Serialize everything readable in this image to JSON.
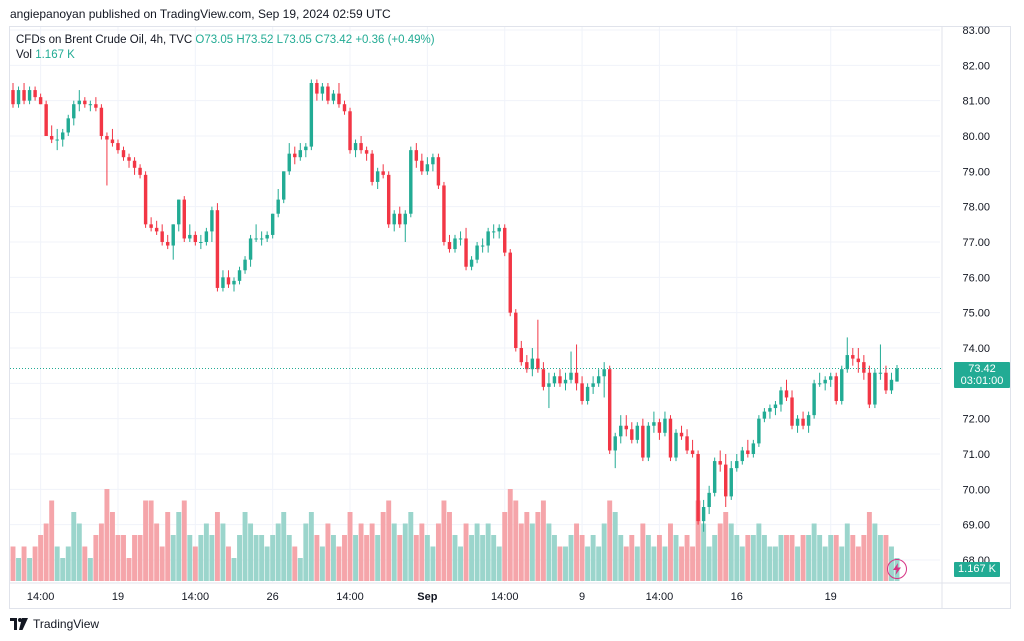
{
  "header": {
    "published_text": "angiepanoyan published on TradingView.com, Sep 19, 2024 02:59 UTC"
  },
  "legend": {
    "symbol_line": "CFDs on Brent Crude Oil, 4h, TVC",
    "open": "O73.05",
    "high": "H73.52",
    "low": "L73.05",
    "close": "C73.42",
    "change": "+0.36 (+0.49%)",
    "vol_label": "Vol",
    "vol_value": "1.167 K"
  },
  "price_tag": {
    "price": "73.42",
    "countdown": "03:01:00"
  },
  "volume_tag": "1.167 K",
  "footer": {
    "brand": "TradingView"
  },
  "colors": {
    "up": "#22ab94",
    "down": "#f23645",
    "up_vol": "#9bd5cc",
    "down_vol": "#f5a5aa",
    "grid": "#f0f3fa"
  },
  "chart_data": {
    "type": "candlestick",
    "title": "CFDs on Brent Crude Oil, 4h, TVC",
    "ylim": [
      67.8,
      83.3
    ],
    "y_ticks": [
      "83.00",
      "82.00",
      "81.00",
      "80.00",
      "79.00",
      "78.00",
      "77.00",
      "76.00",
      "75.00",
      "74.00",
      "73.00",
      "72.00",
      "71.00",
      "70.00",
      "69.00",
      "68.00"
    ],
    "x_ticks": [
      {
        "label": "14:00",
        "index": 5,
        "bold": false
      },
      {
        "label": "19",
        "index": 19,
        "bold": false
      },
      {
        "label": "14:00",
        "index": 33,
        "bold": false
      },
      {
        "label": "26",
        "index": 47,
        "bold": false
      },
      {
        "label": "14:00",
        "index": 61,
        "bold": false
      },
      {
        "label": "Sep",
        "index": 75,
        "bold": true
      },
      {
        "label": "14:00",
        "index": 89,
        "bold": false
      },
      {
        "label": "9",
        "index": 103,
        "bold": false
      },
      {
        "label": "14:00",
        "index": 117,
        "bold": false
      },
      {
        "label": "16",
        "index": 131,
        "bold": false
      },
      {
        "label": "19",
        "index": 148,
        "bold": false
      }
    ],
    "last_price": 73.42,
    "candles": [
      {
        "o": 81.3,
        "h": 81.5,
        "l": 80.8,
        "c": 80.9,
        "v": 3
      },
      {
        "o": 80.9,
        "h": 81.4,
        "l": 80.8,
        "c": 81.3,
        "v": 2
      },
      {
        "o": 81.3,
        "h": 81.5,
        "l": 80.9,
        "c": 81.0,
        "v": 3
      },
      {
        "o": 81.0,
        "h": 81.4,
        "l": 80.9,
        "c": 81.3,
        "v": 2
      },
      {
        "o": 81.3,
        "h": 81.4,
        "l": 81.0,
        "c": 81.1,
        "v": 3
      },
      {
        "o": 81.1,
        "h": 81.2,
        "l": 80.9,
        "c": 80.9,
        "v": 4
      },
      {
        "o": 80.9,
        "h": 81.0,
        "l": 80.0,
        "c": 80.0,
        "v": 5
      },
      {
        "o": 80.0,
        "h": 80.3,
        "l": 79.8,
        "c": 79.9,
        "v": 7
      },
      {
        "o": 79.9,
        "h": 80.2,
        "l": 79.6,
        "c": 79.9,
        "v": 3
      },
      {
        "o": 79.9,
        "h": 80.2,
        "l": 79.7,
        "c": 80.1,
        "v": 2
      },
      {
        "o": 80.1,
        "h": 80.6,
        "l": 80.0,
        "c": 80.5,
        "v": 3
      },
      {
        "o": 80.5,
        "h": 81.0,
        "l": 80.3,
        "c": 80.9,
        "v": 6
      },
      {
        "o": 80.9,
        "h": 81.3,
        "l": 80.7,
        "c": 81.0,
        "v": 5
      },
      {
        "o": 81.0,
        "h": 81.1,
        "l": 80.8,
        "c": 80.9,
        "v": 3
      },
      {
        "o": 80.9,
        "h": 81.0,
        "l": 80.7,
        "c": 80.9,
        "v": 2
      },
      {
        "o": 80.9,
        "h": 81.1,
        "l": 80.7,
        "c": 80.8,
        "v": 4
      },
      {
        "o": 80.8,
        "h": 80.9,
        "l": 79.9,
        "c": 80.0,
        "v": 5
      },
      {
        "o": 80.0,
        "h": 80.1,
        "l": 78.6,
        "c": 79.9,
        "v": 8
      },
      {
        "o": 79.9,
        "h": 80.2,
        "l": 79.7,
        "c": 79.8,
        "v": 6
      },
      {
        "o": 79.8,
        "h": 79.9,
        "l": 79.5,
        "c": 79.6,
        "v": 4
      },
      {
        "o": 79.6,
        "h": 79.7,
        "l": 79.3,
        "c": 79.4,
        "v": 4
      },
      {
        "o": 79.4,
        "h": 79.5,
        "l": 79.1,
        "c": 79.3,
        "v": 2
      },
      {
        "o": 79.3,
        "h": 79.4,
        "l": 78.9,
        "c": 79.1,
        "v": 4
      },
      {
        "o": 79.1,
        "h": 79.2,
        "l": 78.8,
        "c": 78.9,
        "v": 4
      },
      {
        "o": 78.9,
        "h": 79.0,
        "l": 77.4,
        "c": 77.5,
        "v": 7
      },
      {
        "o": 77.5,
        "h": 77.7,
        "l": 77.3,
        "c": 77.4,
        "v": 7
      },
      {
        "o": 77.4,
        "h": 77.6,
        "l": 77.2,
        "c": 77.3,
        "v": 5
      },
      {
        "o": 77.3,
        "h": 77.5,
        "l": 76.9,
        "c": 77.0,
        "v": 3
      },
      {
        "o": 77.0,
        "h": 77.2,
        "l": 76.8,
        "c": 76.9,
        "v": 6
      },
      {
        "o": 76.9,
        "h": 77.5,
        "l": 76.5,
        "c": 77.5,
        "v": 4
      },
      {
        "o": 77.5,
        "h": 78.2,
        "l": 77.3,
        "c": 78.2,
        "v": 6
      },
      {
        "o": 78.2,
        "h": 78.3,
        "l": 77.0,
        "c": 77.1,
        "v": 7
      },
      {
        "o": 77.1,
        "h": 77.5,
        "l": 77.0,
        "c": 77.2,
        "v": 4
      },
      {
        "o": 77.2,
        "h": 77.3,
        "l": 76.9,
        "c": 77.0,
        "v": 3
      },
      {
        "o": 77.0,
        "h": 77.2,
        "l": 76.8,
        "c": 77.0,
        "v": 4
      },
      {
        "o": 77.0,
        "h": 77.4,
        "l": 76.9,
        "c": 77.3,
        "v": 5
      },
      {
        "o": 77.3,
        "h": 78.0,
        "l": 77.0,
        "c": 77.9,
        "v": 4
      },
      {
        "o": 77.9,
        "h": 78.1,
        "l": 75.6,
        "c": 75.7,
        "v": 6
      },
      {
        "o": 75.7,
        "h": 76.2,
        "l": 75.6,
        "c": 76.0,
        "v": 5
      },
      {
        "o": 76.0,
        "h": 76.2,
        "l": 75.7,
        "c": 75.8,
        "v": 3
      },
      {
        "o": 75.8,
        "h": 76.0,
        "l": 75.6,
        "c": 75.9,
        "v": 2
      },
      {
        "o": 75.9,
        "h": 76.3,
        "l": 75.8,
        "c": 76.2,
        "v": 4
      },
      {
        "o": 76.2,
        "h": 76.6,
        "l": 76.1,
        "c": 76.5,
        "v": 6
      },
      {
        "o": 76.5,
        "h": 77.2,
        "l": 76.3,
        "c": 77.1,
        "v": 5
      },
      {
        "o": 77.1,
        "h": 77.5,
        "l": 77.0,
        "c": 77.1,
        "v": 4
      },
      {
        "o": 77.1,
        "h": 77.3,
        "l": 76.9,
        "c": 77.1,
        "v": 4
      },
      {
        "o": 77.1,
        "h": 77.3,
        "l": 77.0,
        "c": 77.2,
        "v": 3
      },
      {
        "o": 77.2,
        "h": 77.8,
        "l": 77.1,
        "c": 77.8,
        "v": 4
      },
      {
        "o": 77.8,
        "h": 78.5,
        "l": 77.7,
        "c": 78.2,
        "v": 5
      },
      {
        "o": 78.2,
        "h": 79.0,
        "l": 78.1,
        "c": 79.0,
        "v": 6
      },
      {
        "o": 79.0,
        "h": 79.8,
        "l": 78.9,
        "c": 79.5,
        "v": 4
      },
      {
        "o": 79.5,
        "h": 79.7,
        "l": 79.2,
        "c": 79.4,
        "v": 3
      },
      {
        "o": 79.4,
        "h": 79.8,
        "l": 79.3,
        "c": 79.6,
        "v": 2
      },
      {
        "o": 79.6,
        "h": 79.8,
        "l": 79.4,
        "c": 79.7,
        "v": 5
      },
      {
        "o": 79.7,
        "h": 81.6,
        "l": 79.6,
        "c": 81.5,
        "v": 6
      },
      {
        "o": 81.5,
        "h": 81.6,
        "l": 81.0,
        "c": 81.2,
        "v": 4
      },
      {
        "o": 81.2,
        "h": 81.5,
        "l": 81.0,
        "c": 81.4,
        "v": 3
      },
      {
        "o": 81.4,
        "h": 81.5,
        "l": 80.9,
        "c": 81.0,
        "v": 5
      },
      {
        "o": 81.0,
        "h": 81.3,
        "l": 80.9,
        "c": 81.2,
        "v": 4
      },
      {
        "o": 81.2,
        "h": 81.5,
        "l": 80.8,
        "c": 80.9,
        "v": 3
      },
      {
        "o": 80.9,
        "h": 81.0,
        "l": 80.6,
        "c": 80.7,
        "v": 4
      },
      {
        "o": 80.7,
        "h": 80.8,
        "l": 79.5,
        "c": 79.6,
        "v": 6
      },
      {
        "o": 79.6,
        "h": 79.9,
        "l": 79.4,
        "c": 79.8,
        "v": 4
      },
      {
        "o": 79.8,
        "h": 80.0,
        "l": 79.5,
        "c": 79.6,
        "v": 5
      },
      {
        "o": 79.6,
        "h": 79.7,
        "l": 79.3,
        "c": 79.5,
        "v": 4
      },
      {
        "o": 79.5,
        "h": 79.6,
        "l": 78.6,
        "c": 78.7,
        "v": 5
      },
      {
        "o": 78.7,
        "h": 79.1,
        "l": 78.5,
        "c": 79.0,
        "v": 4
      },
      {
        "o": 79.0,
        "h": 79.2,
        "l": 78.8,
        "c": 78.9,
        "v": 6
      },
      {
        "o": 78.9,
        "h": 79.0,
        "l": 77.4,
        "c": 77.5,
        "v": 7
      },
      {
        "o": 77.5,
        "h": 77.9,
        "l": 77.3,
        "c": 77.8,
        "v": 5
      },
      {
        "o": 77.8,
        "h": 78.0,
        "l": 77.4,
        "c": 77.5,
        "v": 4
      },
      {
        "o": 77.5,
        "h": 77.9,
        "l": 77.0,
        "c": 77.8,
        "v": 5
      },
      {
        "o": 77.8,
        "h": 79.7,
        "l": 77.7,
        "c": 79.6,
        "v": 6
      },
      {
        "o": 79.6,
        "h": 79.8,
        "l": 79.1,
        "c": 79.3,
        "v": 4
      },
      {
        "o": 79.3,
        "h": 79.5,
        "l": 78.9,
        "c": 79.0,
        "v": 5
      },
      {
        "o": 79.0,
        "h": 79.4,
        "l": 78.9,
        "c": 79.2,
        "v": 4
      },
      {
        "o": 79.2,
        "h": 79.5,
        "l": 79.0,
        "c": 79.4,
        "v": 3
      },
      {
        "o": 79.4,
        "h": 79.5,
        "l": 78.5,
        "c": 78.6,
        "v": 5
      },
      {
        "o": 78.6,
        "h": 78.7,
        "l": 76.9,
        "c": 77.0,
        "v": 7
      },
      {
        "o": 77.0,
        "h": 77.2,
        "l": 76.7,
        "c": 76.8,
        "v": 6
      },
      {
        "o": 76.8,
        "h": 77.2,
        "l": 76.7,
        "c": 77.1,
        "v": 4
      },
      {
        "o": 77.1,
        "h": 77.3,
        "l": 76.9,
        "c": 77.1,
        "v": 3
      },
      {
        "o": 77.1,
        "h": 77.4,
        "l": 76.2,
        "c": 76.3,
        "v": 5
      },
      {
        "o": 76.3,
        "h": 76.6,
        "l": 76.2,
        "c": 76.5,
        "v": 4
      },
      {
        "o": 76.5,
        "h": 77.0,
        "l": 76.4,
        "c": 76.9,
        "v": 5
      },
      {
        "o": 76.9,
        "h": 77.1,
        "l": 76.7,
        "c": 76.9,
        "v": 4
      },
      {
        "o": 76.9,
        "h": 77.4,
        "l": 76.7,
        "c": 77.3,
        "v": 5
      },
      {
        "o": 77.3,
        "h": 77.5,
        "l": 77.1,
        "c": 77.3,
        "v": 4
      },
      {
        "o": 77.3,
        "h": 77.5,
        "l": 77.1,
        "c": 77.4,
        "v": 3
      },
      {
        "o": 77.4,
        "h": 77.5,
        "l": 76.6,
        "c": 76.7,
        "v": 6
      },
      {
        "o": 76.7,
        "h": 76.8,
        "l": 74.9,
        "c": 75.0,
        "v": 8
      },
      {
        "o": 75.0,
        "h": 75.1,
        "l": 73.9,
        "c": 74.0,
        "v": 7
      },
      {
        "o": 74.0,
        "h": 74.2,
        "l": 73.5,
        "c": 73.6,
        "v": 5
      },
      {
        "o": 73.6,
        "h": 73.8,
        "l": 73.3,
        "c": 73.4,
        "v": 6
      },
      {
        "o": 73.4,
        "h": 74.0,
        "l": 73.2,
        "c": 73.7,
        "v": 5
      },
      {
        "o": 73.7,
        "h": 74.8,
        "l": 73.3,
        "c": 73.4,
        "v": 6
      },
      {
        "o": 73.4,
        "h": 73.6,
        "l": 72.8,
        "c": 72.9,
        "v": 7
      },
      {
        "o": 72.9,
        "h": 73.3,
        "l": 72.3,
        "c": 73.0,
        "v": 5
      },
      {
        "o": 73.0,
        "h": 73.3,
        "l": 72.9,
        "c": 73.2,
        "v": 4
      },
      {
        "o": 73.2,
        "h": 73.4,
        "l": 72.9,
        "c": 73.0,
        "v": 3
      },
      {
        "o": 73.0,
        "h": 73.3,
        "l": 72.8,
        "c": 73.1,
        "v": 3
      },
      {
        "o": 73.1,
        "h": 73.9,
        "l": 73.0,
        "c": 73.3,
        "v": 4
      },
      {
        "o": 73.3,
        "h": 74.1,
        "l": 72.8,
        "c": 73.0,
        "v": 5
      },
      {
        "o": 73.0,
        "h": 73.2,
        "l": 72.4,
        "c": 72.5,
        "v": 4
      },
      {
        "o": 72.5,
        "h": 73.0,
        "l": 72.4,
        "c": 72.9,
        "v": 3
      },
      {
        "o": 72.9,
        "h": 73.2,
        "l": 72.7,
        "c": 73.0,
        "v": 4
      },
      {
        "o": 73.0,
        "h": 73.4,
        "l": 72.9,
        "c": 73.2,
        "v": 3
      },
      {
        "o": 73.2,
        "h": 73.6,
        "l": 72.6,
        "c": 73.4,
        "v": 5
      },
      {
        "o": 73.4,
        "h": 73.5,
        "l": 71.0,
        "c": 71.1,
        "v": 7
      },
      {
        "o": 71.1,
        "h": 71.6,
        "l": 70.6,
        "c": 71.5,
        "v": 6
      },
      {
        "o": 71.5,
        "h": 72.1,
        "l": 71.3,
        "c": 71.8,
        "v": 4
      },
      {
        "o": 71.8,
        "h": 72.1,
        "l": 71.5,
        "c": 71.7,
        "v": 3
      },
      {
        "o": 71.7,
        "h": 71.9,
        "l": 71.3,
        "c": 71.4,
        "v": 4
      },
      {
        "o": 71.4,
        "h": 71.9,
        "l": 71.3,
        "c": 71.8,
        "v": 3
      },
      {
        "o": 71.8,
        "h": 72.0,
        "l": 70.8,
        "c": 70.9,
        "v": 5
      },
      {
        "o": 70.9,
        "h": 71.9,
        "l": 70.8,
        "c": 71.8,
        "v": 4
      },
      {
        "o": 71.8,
        "h": 72.2,
        "l": 71.6,
        "c": 71.9,
        "v": 3
      },
      {
        "o": 71.9,
        "h": 72.0,
        "l": 71.4,
        "c": 71.6,
        "v": 4
      },
      {
        "o": 71.6,
        "h": 72.2,
        "l": 71.5,
        "c": 72.0,
        "v": 3
      },
      {
        "o": 72.0,
        "h": 72.1,
        "l": 70.8,
        "c": 70.9,
        "v": 5
      },
      {
        "o": 70.9,
        "h": 71.7,
        "l": 70.8,
        "c": 71.6,
        "v": 4
      },
      {
        "o": 71.6,
        "h": 71.8,
        "l": 71.4,
        "c": 71.5,
        "v": 3
      },
      {
        "o": 71.5,
        "h": 71.7,
        "l": 71.0,
        "c": 71.1,
        "v": 4
      },
      {
        "o": 71.1,
        "h": 71.4,
        "l": 70.9,
        "c": 71.0,
        "v": 3
      },
      {
        "o": 71.0,
        "h": 71.1,
        "l": 69.0,
        "c": 69.1,
        "v": 7
      },
      {
        "o": 69.1,
        "h": 69.7,
        "l": 68.8,
        "c": 69.5,
        "v": 5
      },
      {
        "o": 69.5,
        "h": 70.1,
        "l": 69.3,
        "c": 69.9,
        "v": 3
      },
      {
        "o": 69.9,
        "h": 70.9,
        "l": 69.8,
        "c": 70.8,
        "v": 4
      },
      {
        "o": 70.8,
        "h": 71.1,
        "l": 70.5,
        "c": 70.7,
        "v": 5
      },
      {
        "o": 70.7,
        "h": 71.0,
        "l": 69.5,
        "c": 69.8,
        "v": 6
      },
      {
        "o": 69.8,
        "h": 70.8,
        "l": 69.7,
        "c": 70.6,
        "v": 5
      },
      {
        "o": 70.6,
        "h": 71.0,
        "l": 70.5,
        "c": 70.8,
        "v": 4
      },
      {
        "o": 70.8,
        "h": 71.2,
        "l": 70.7,
        "c": 71.1,
        "v": 3
      },
      {
        "o": 71.1,
        "h": 71.4,
        "l": 70.9,
        "c": 71.0,
        "v": 4
      },
      {
        "o": 71.0,
        "h": 71.4,
        "l": 70.9,
        "c": 71.3,
        "v": 4
      },
      {
        "o": 71.3,
        "h": 72.1,
        "l": 71.2,
        "c": 72.0,
        "v": 5
      },
      {
        "o": 72.0,
        "h": 72.3,
        "l": 71.9,
        "c": 72.2,
        "v": 4
      },
      {
        "o": 72.2,
        "h": 72.4,
        "l": 72.0,
        "c": 72.3,
        "v": 3
      },
      {
        "o": 72.3,
        "h": 72.5,
        "l": 72.1,
        "c": 72.4,
        "v": 3
      },
      {
        "o": 72.4,
        "h": 72.9,
        "l": 72.2,
        "c": 72.8,
        "v": 4
      },
      {
        "o": 72.8,
        "h": 73.1,
        "l": 72.5,
        "c": 72.6,
        "v": 4
      },
      {
        "o": 72.6,
        "h": 72.8,
        "l": 71.7,
        "c": 71.8,
        "v": 4
      },
      {
        "o": 71.8,
        "h": 72.1,
        "l": 71.6,
        "c": 72.0,
        "v": 3
      },
      {
        "o": 72.0,
        "h": 72.2,
        "l": 71.7,
        "c": 71.8,
        "v": 4
      },
      {
        "o": 71.8,
        "h": 72.2,
        "l": 71.6,
        "c": 72.1,
        "v": 4
      },
      {
        "o": 72.1,
        "h": 73.1,
        "l": 72.0,
        "c": 73.0,
        "v": 5
      },
      {
        "o": 73.0,
        "h": 73.3,
        "l": 72.9,
        "c": 73.0,
        "v": 4
      },
      {
        "o": 73.0,
        "h": 73.2,
        "l": 72.8,
        "c": 73.1,
        "v": 3
      },
      {
        "o": 73.1,
        "h": 73.3,
        "l": 72.9,
        "c": 73.2,
        "v": 4
      },
      {
        "o": 73.2,
        "h": 73.3,
        "l": 72.4,
        "c": 72.5,
        "v": 4
      },
      {
        "o": 72.5,
        "h": 73.5,
        "l": 72.4,
        "c": 73.4,
        "v": 3
      },
      {
        "o": 73.4,
        "h": 74.3,
        "l": 73.3,
        "c": 73.8,
        "v": 5
      },
      {
        "o": 73.8,
        "h": 74.0,
        "l": 73.5,
        "c": 73.7,
        "v": 4
      },
      {
        "o": 73.7,
        "h": 74.0,
        "l": 73.3,
        "c": 73.6,
        "v": 3
      },
      {
        "o": 73.6,
        "h": 73.8,
        "l": 73.1,
        "c": 73.3,
        "v": 4
      },
      {
        "o": 73.3,
        "h": 73.5,
        "l": 72.3,
        "c": 72.4,
        "v": 6
      },
      {
        "o": 72.4,
        "h": 73.4,
        "l": 72.3,
        "c": 73.3,
        "v": 5
      },
      {
        "o": 73.3,
        "h": 74.1,
        "l": 73.1,
        "c": 73.3,
        "v": 4
      },
      {
        "o": 73.3,
        "h": 73.5,
        "l": 72.7,
        "c": 72.8,
        "v": 4
      },
      {
        "o": 72.8,
        "h": 73.3,
        "l": 72.7,
        "c": 73.1,
        "v": 3
      },
      {
        "o": 73.05,
        "h": 73.52,
        "l": 73.05,
        "c": 73.42,
        "v": 2
      }
    ]
  }
}
